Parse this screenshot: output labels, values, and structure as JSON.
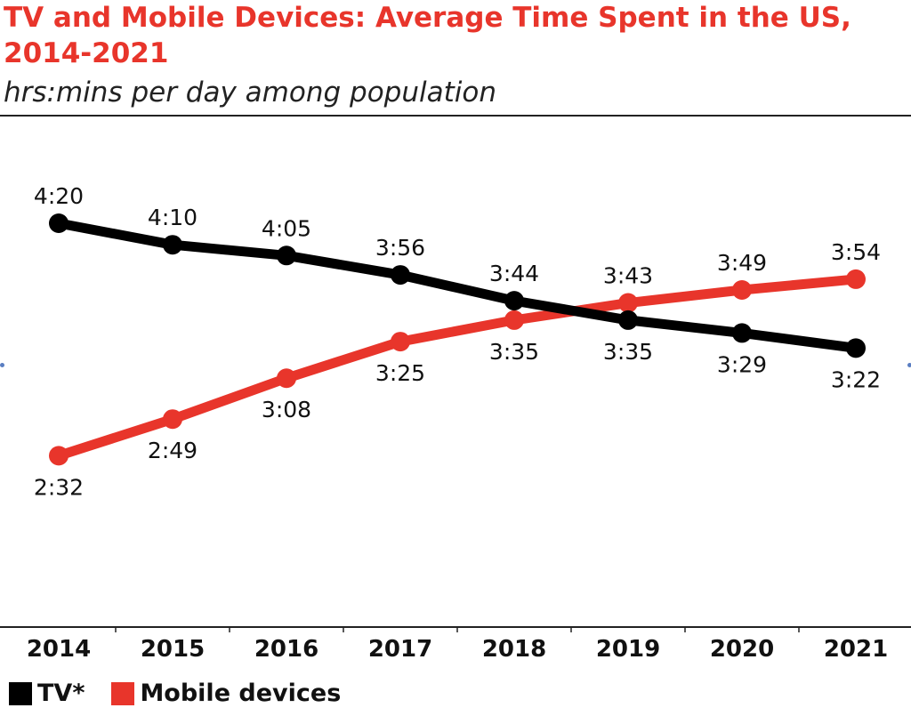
{
  "title": "TV and Mobile Devices: Average Time Spent in the US, 2014-2021",
  "subtitle": "hrs:mins per day among population",
  "colors": {
    "tv": "#000000",
    "mobile": "#e8352b",
    "title": "#e8352b"
  },
  "chart_data": {
    "type": "line",
    "title": "TV and Mobile Devices: Average Time Spent in the US, 2014-2021",
    "subtitle": "hrs:mins per day among population",
    "x": [
      "2014",
      "2015",
      "2016",
      "2017",
      "2018",
      "2019",
      "2020",
      "2021"
    ],
    "series": [
      {
        "name": "TV*",
        "color": "#000000",
        "values": [
          260,
          250,
          245,
          236,
          224,
          215,
          209,
          202
        ],
        "labels": [
          "4:20",
          "4:10",
          "4:05",
          "3:56",
          "3:44",
          "3:35",
          "3:29",
          "3:22"
        ]
      },
      {
        "name": "Mobile devices",
        "color": "#e8352b",
        "values": [
          152,
          169,
          188,
          205,
          215,
          223,
          229,
          234
        ],
        "labels": [
          "2:32",
          "2:49",
          "3:08",
          "3:25",
          "3:35",
          "3:43",
          "3:49",
          "3:54"
        ]
      }
    ],
    "xlabel": "",
    "ylabel": "",
    "grid": false,
    "legend": "bottom-left"
  },
  "legend": {
    "tv": "TV*",
    "mobile": "Mobile devices"
  }
}
